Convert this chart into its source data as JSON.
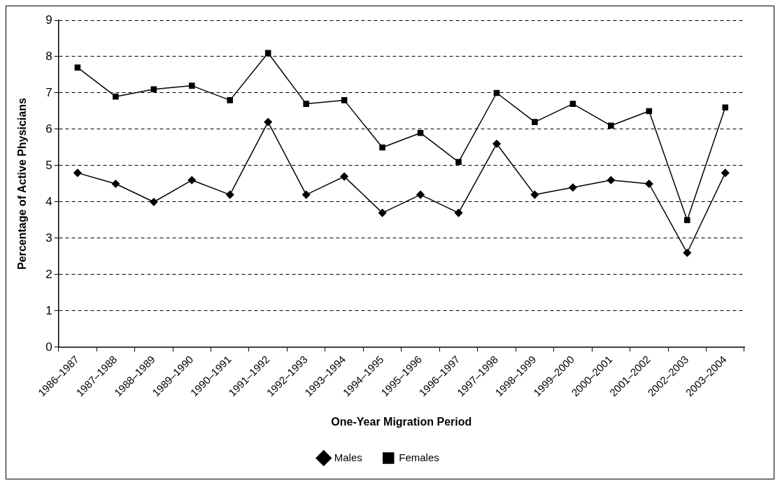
{
  "chart_data": {
    "type": "line",
    "xlabel": "One-Year Migration Period",
    "ylabel": "Percentage of Active Physicians",
    "categories": [
      "1986–1987",
      "1987–1988",
      "1988–1989",
      "1989–1990",
      "1990–1991",
      "1991–1992",
      "1992–1993",
      "1993–1994",
      "1994–1995",
      "1995–1996",
      "1996–1997",
      "1997–1998",
      "1998–1999",
      "1999–2000",
      "2000–2001",
      "2001–2002",
      "2002–2003",
      "2003–2004"
    ],
    "series": [
      {
        "name": "Males",
        "color": "#000000",
        "marker": "diamond",
        "values": [
          4.8,
          4.5,
          4.0,
          4.6,
          4.2,
          6.2,
          4.2,
          4.7,
          3.7,
          4.2,
          3.7,
          5.6,
          4.2,
          4.4,
          4.6,
          4.5,
          2.6,
          4.8
        ]
      },
      {
        "name": "Females",
        "color": "#000000",
        "marker": "square",
        "values": [
          7.7,
          6.9,
          7.1,
          7.2,
          6.8,
          8.1,
          6.7,
          6.8,
          5.5,
          5.9,
          5.1,
          7.0,
          6.2,
          6.7,
          6.1,
          6.5,
          3.5,
          6.6
        ]
      }
    ],
    "ylim": [
      0,
      9
    ],
    "yticks": [
      0,
      1,
      2,
      3,
      4,
      5,
      6,
      7,
      8,
      9
    ],
    "grid": "y",
    "legend": "bottom",
    "line_style": "solid"
  }
}
